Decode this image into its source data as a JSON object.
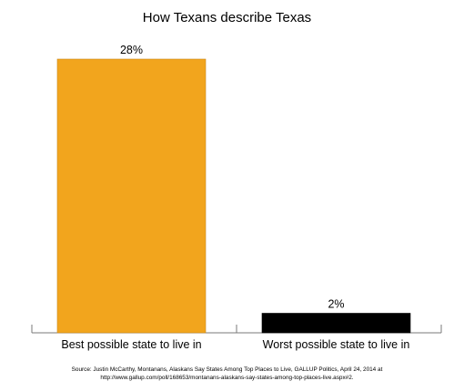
{
  "chart_data": {
    "type": "bar",
    "title": "How Texans describe Texas",
    "categories": [
      "Best possible state to live in",
      "Worst possible state to live in"
    ],
    "values": [
      28,
      2
    ],
    "value_labels": [
      "28%",
      "2%"
    ],
    "colors": [
      "#f2a51d",
      "#000000"
    ],
    "ylim": [
      0,
      28
    ],
    "grid": false,
    "legend": "none"
  },
  "source": {
    "line1": "Source: Justin McCarthy, Montanans, Alaskans Say States Among Top Places to Live, GALLUP Politics, April 24, 2014 at",
    "line2": "http://www.gallup.com/poll/168653/montanans-alaskans-say-states-among-top-places-live.aspx#2."
  }
}
